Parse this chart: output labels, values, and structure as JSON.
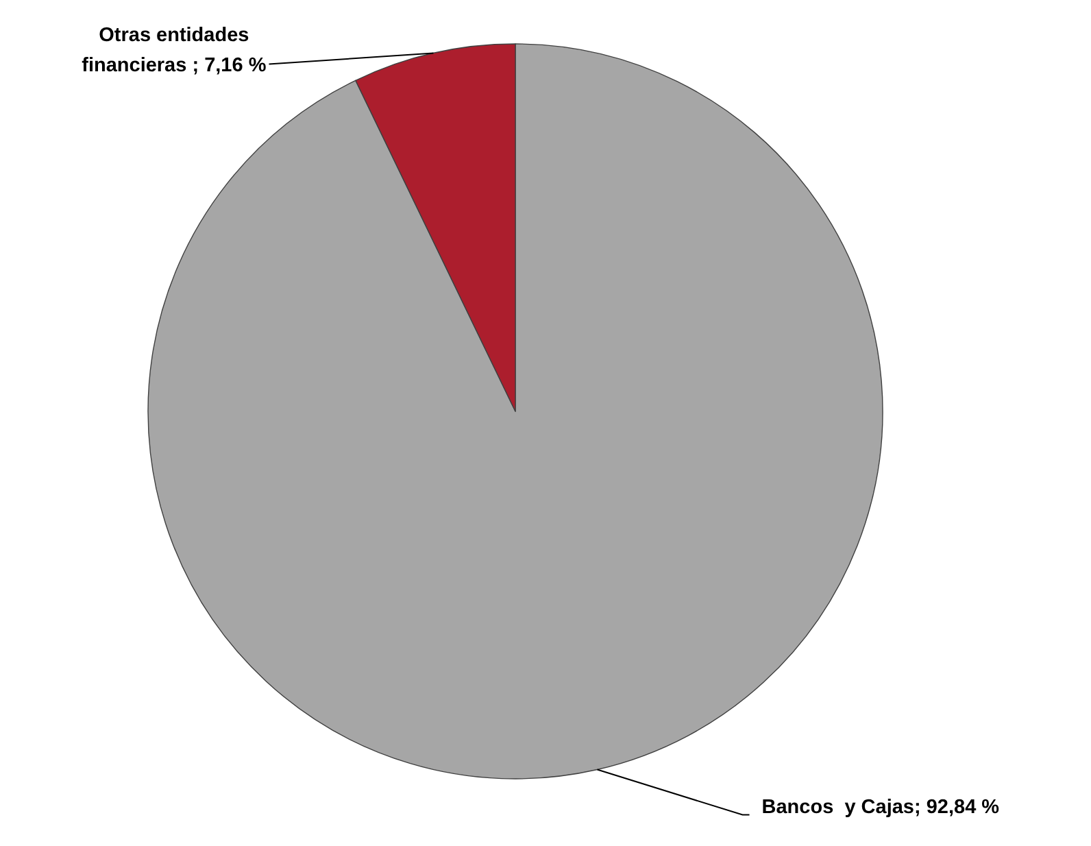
{
  "chart_data": {
    "type": "pie",
    "categories": [
      "Bancos  y Cajas",
      "Otras entidades financieras "
    ],
    "values": [
      92.84,
      7.16
    ],
    "colors": [
      "#a6a6a6",
      "#ac1e2d"
    ],
    "value_labels": [
      "92,84 %",
      "7,16 %"
    ]
  }
}
